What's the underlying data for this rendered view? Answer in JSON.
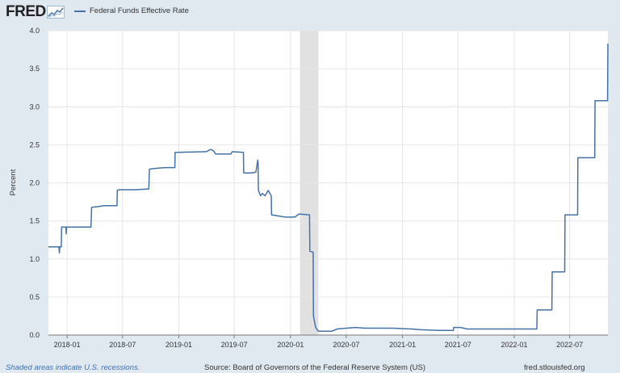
{
  "header": {
    "logo_text": "FRED",
    "legend_label": "Federal Funds Effective Rate",
    "series_color": "#4572a7"
  },
  "footer": {
    "recession_note": "Shaded areas indicate U.S. recessions.",
    "source": "Source: Board of Governors of the Federal Reserve System (US)",
    "site": "fred.stlouisfed.org"
  },
  "chart_data": {
    "type": "line",
    "ylabel": "Percent",
    "ylim": [
      0,
      4.0
    ],
    "yticks": [
      "0.0",
      "0.5",
      "1.0",
      "1.5",
      "2.0",
      "2.5",
      "3.0",
      "3.5",
      "4.0"
    ],
    "xlim": [
      "2017-11-01",
      "2022-11-03"
    ],
    "xticks": [
      {
        "date": "2018-01-01",
        "label": "2018-01"
      },
      {
        "date": "2018-07-01",
        "label": "2018-07"
      },
      {
        "date": "2019-01-01",
        "label": "2019-01"
      },
      {
        "date": "2019-07-01",
        "label": "2019-07"
      },
      {
        "date": "2020-01-01",
        "label": "2020-01"
      },
      {
        "date": "2020-07-01",
        "label": "2020-07"
      },
      {
        "date": "2021-01-01",
        "label": "2021-01"
      },
      {
        "date": "2021-07-01",
        "label": "2021-07"
      },
      {
        "date": "2022-01-01",
        "label": "2022-01"
      },
      {
        "date": "2022-07-01",
        "label": "2022-07"
      }
    ],
    "grid": true,
    "recession": {
      "start": "2020-02-01",
      "end": "2020-04-01",
      "color": "#e1e1e1"
    },
    "series": [
      {
        "name": "Federal Funds Effective Rate",
        "color": "#4572a7",
        "points": [
          [
            "2017-11-01",
            1.16
          ],
          [
            "2017-12-05",
            1.16
          ],
          [
            "2017-12-07",
            1.08
          ],
          [
            "2017-12-08",
            1.16
          ],
          [
            "2017-12-13",
            1.16
          ],
          [
            "2017-12-14",
            1.42
          ],
          [
            "2017-12-28",
            1.42
          ],
          [
            "2017-12-29",
            1.33
          ],
          [
            "2017-12-30",
            1.42
          ],
          [
            "2018-03-20",
            1.42
          ],
          [
            "2018-03-22",
            1.68
          ],
          [
            "2018-04-15",
            1.69
          ],
          [
            "2018-05-01",
            1.7
          ],
          [
            "2018-06-13",
            1.7
          ],
          [
            "2018-06-14",
            1.9
          ],
          [
            "2018-06-20",
            1.91
          ],
          [
            "2018-08-15",
            1.91
          ],
          [
            "2018-09-25",
            1.92
          ],
          [
            "2018-09-27",
            2.18
          ],
          [
            "2018-10-15",
            2.19
          ],
          [
            "2018-11-15",
            2.2
          ],
          [
            "2018-12-19",
            2.2
          ],
          [
            "2018-12-20",
            2.4
          ],
          [
            "2019-04-01",
            2.41
          ],
          [
            "2019-04-15",
            2.44
          ],
          [
            "2019-04-25",
            2.42
          ],
          [
            "2019-05-01",
            2.38
          ],
          [
            "2019-06-20",
            2.38
          ],
          [
            "2019-06-25",
            2.41
          ],
          [
            "2019-07-31",
            2.4
          ],
          [
            "2019-08-01",
            2.13
          ],
          [
            "2019-08-25",
            2.13
          ],
          [
            "2019-09-10",
            2.14
          ],
          [
            "2019-09-16",
            2.3
          ],
          [
            "2019-09-17",
            2.25
          ],
          [
            "2019-09-18",
            1.9
          ],
          [
            "2019-09-25",
            1.83
          ],
          [
            "2019-10-01",
            1.86
          ],
          [
            "2019-10-10",
            1.83
          ],
          [
            "2019-10-20",
            1.9
          ],
          [
            "2019-10-30",
            1.83
          ],
          [
            "2019-10-31",
            1.58
          ],
          [
            "2019-12-15",
            1.55
          ],
          [
            "2019-12-31",
            1.55
          ],
          [
            "2020-01-15",
            1.55
          ],
          [
            "2020-01-29",
            1.59
          ],
          [
            "2020-03-03",
            1.58
          ],
          [
            "2020-03-04",
            1.1
          ],
          [
            "2020-03-15",
            1.09
          ],
          [
            "2020-03-16",
            0.25
          ],
          [
            "2020-03-23",
            0.1
          ],
          [
            "2020-04-01",
            0.05
          ],
          [
            "2020-05-15",
            0.05
          ],
          [
            "2020-06-01",
            0.08
          ],
          [
            "2020-07-01",
            0.09
          ],
          [
            "2020-08-01",
            0.1
          ],
          [
            "2020-09-01",
            0.09
          ],
          [
            "2020-12-01",
            0.09
          ],
          [
            "2021-02-01",
            0.08
          ],
          [
            "2021-03-01",
            0.07
          ],
          [
            "2021-05-01",
            0.06
          ],
          [
            "2021-06-16",
            0.06
          ],
          [
            "2021-06-17",
            0.1
          ],
          [
            "2021-07-10",
            0.1
          ],
          [
            "2021-07-31",
            0.08
          ],
          [
            "2021-12-31",
            0.08
          ],
          [
            "2022-03-16",
            0.08
          ],
          [
            "2022-03-17",
            0.33
          ],
          [
            "2022-05-04",
            0.33
          ],
          [
            "2022-05-05",
            0.83
          ],
          [
            "2022-06-15",
            0.83
          ],
          [
            "2022-06-16",
            1.58
          ],
          [
            "2022-07-27",
            1.58
          ],
          [
            "2022-07-28",
            2.33
          ],
          [
            "2022-09-21",
            2.33
          ],
          [
            "2022-09-22",
            3.08
          ],
          [
            "2022-11-02",
            3.08
          ],
          [
            "2022-11-03",
            3.83
          ]
        ]
      }
    ]
  }
}
